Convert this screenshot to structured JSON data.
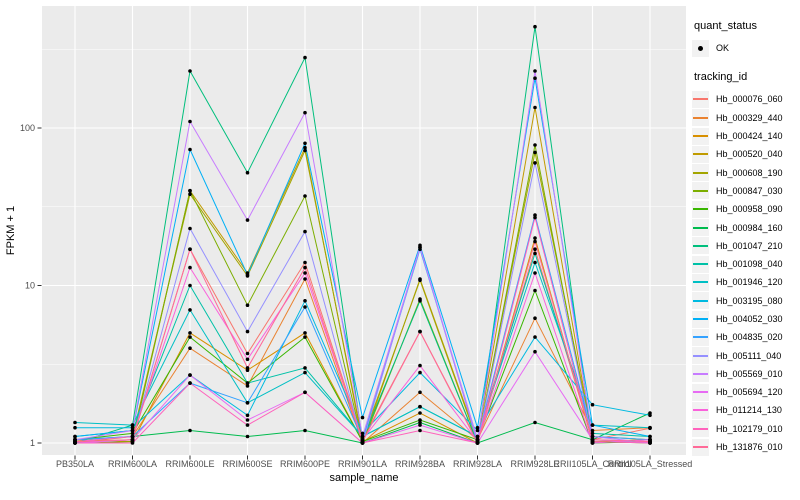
{
  "chart_data": {
    "type": "line",
    "title": "",
    "xlabel": "sample_name",
    "ylabel": "FPKM + 1",
    "y_scale": "log10",
    "y_ticks": [
      1,
      10,
      100
    ],
    "ylim": [
      1,
      560
    ],
    "grid": true,
    "legend_position": "right",
    "point_color": "#000000",
    "categories": [
      "PB350LA",
      "RRIM600LA",
      "RRIM600LE",
      "RRIM600SE",
      "RRIM600PE",
      "RRIM901LA",
      "RRIM928BA",
      "RRIM928LA",
      "RRIM928LE",
      "RRII105LA_Control",
      "RRII105LA_Stressed"
    ],
    "series": [
      {
        "name": "Hb_000076_060",
        "color": "#F8766D",
        "values": [
          1.02,
          1.05,
          17,
          3.7,
          14,
          1.05,
          5.1,
          1.02,
          17,
          1.05,
          1.24
        ]
      },
      {
        "name": "Hb_000329_440",
        "color": "#EA8331",
        "values": [
          1.0,
          1.1,
          4.0,
          2.3,
          11,
          1.0,
          2.1,
          1.05,
          6.2,
          1.2,
          1.25
        ]
      },
      {
        "name": "Hb_000424_140",
        "color": "#D89000",
        "values": [
          1.05,
          1.02,
          5.0,
          2.9,
          5.0,
          1.02,
          1.55,
          1.0,
          20,
          1.02,
          1.05
        ]
      },
      {
        "name": "Hb_000520_040",
        "color": "#C09B00",
        "values": [
          1.0,
          1.05,
          40,
          12,
          75,
          1.0,
          11,
          1.05,
          135,
          1.05,
          1.02
        ]
      },
      {
        "name": "Hb_000608_190",
        "color": "#A3A500",
        "values": [
          1.02,
          1.1,
          38,
          11.5,
          72,
          1.05,
          10.8,
          1.02,
          70,
          1.1,
          1.05
        ]
      },
      {
        "name": "Hb_000847_030",
        "color": "#7CAE00",
        "values": [
          1.0,
          1.02,
          40,
          7.5,
          37,
          1.0,
          8.2,
          1.0,
          78,
          1.02,
          1.0
        ]
      },
      {
        "name": "Hb_000958_090",
        "color": "#39B600",
        "values": [
          1.05,
          1.15,
          4.7,
          2.4,
          4.7,
          1.02,
          1.4,
          1.05,
          9.3,
          1.0,
          1.02
        ]
      },
      {
        "name": "Hb_000984_160",
        "color": "#00BB4E",
        "values": [
          1.05,
          1.1,
          1.2,
          1.1,
          1.2,
          1.0,
          1.35,
          1.0,
          1.35,
          1.05,
          1.55
        ]
      },
      {
        "name": "Hb_001047_210",
        "color": "#00BF7D",
        "values": [
          1.0,
          1.3,
          230,
          52,
          280,
          1.05,
          8.0,
          1.0,
          440,
          1.0,
          1.05
        ]
      },
      {
        "name": "Hb_001098_040",
        "color": "#00C1A7",
        "values": [
          1.1,
          1.2,
          10,
          2.4,
          3.0,
          1.1,
          1.7,
          1.1,
          16,
          1.15,
          1.1
        ]
      },
      {
        "name": "Hb_001946_120",
        "color": "#00BFC4",
        "values": [
          1.35,
          1.3,
          7.0,
          1.8,
          2.8,
          1.1,
          1.7,
          1.1,
          14,
          1.3,
          1.25
        ]
      },
      {
        "name": "Hb_003195_080",
        "color": "#00BAE0",
        "values": [
          1.25,
          1.25,
          2.7,
          1.5,
          8.0,
          1.15,
          2.8,
          1.2,
          4.7,
          1.75,
          1.5
        ]
      },
      {
        "name": "Hb_004052_030",
        "color": "#00B0F6",
        "values": [
          1.1,
          1.2,
          73,
          11.7,
          80,
          1.45,
          18,
          1.25,
          207,
          1.3,
          1.1
        ]
      },
      {
        "name": "Hb_004835_020",
        "color": "#35A2FF",
        "values": [
          1.05,
          1.1,
          2.4,
          1.8,
          7.3,
          1.05,
          17,
          1.05,
          28,
          1.1,
          1.05
        ]
      },
      {
        "name": "Hb_005111_040",
        "color": "#9590FF",
        "values": [
          1.0,
          1.05,
          23,
          5.1,
          22,
          1.0,
          17.5,
          1.0,
          60,
          1.05,
          1.0
        ]
      },
      {
        "name": "Hb_005569_010",
        "color": "#C77CFF",
        "values": [
          1.05,
          1.2,
          110,
          26,
          125,
          1.1,
          17.5,
          1.05,
          230,
          1.1,
          1.0
        ]
      },
      {
        "name": "Hb_005694_120",
        "color": "#E76BF3",
        "values": [
          1.0,
          1.05,
          2.7,
          1.4,
          2.1,
          1.0,
          1.3,
          1.0,
          3.8,
          1.05,
          1.02
        ]
      },
      {
        "name": "Hb_011214_130",
        "color": "#FA62DB",
        "values": [
          1.02,
          1.1,
          13,
          3.4,
          12,
          1.05,
          3.1,
          1.02,
          12,
          1.0,
          1.05
        ]
      },
      {
        "name": "Hb_102179_010",
        "color": "#FF62BC",
        "values": [
          1.0,
          1.0,
          2.4,
          1.3,
          2.1,
          1.0,
          1.2,
          1.0,
          27,
          1.02,
          1.0
        ]
      },
      {
        "name": "Hb_131876_010",
        "color": "#FF6A98",
        "values": [
          1.02,
          1.05,
          17,
          3.0,
          13,
          1.02,
          5.1,
          1.0,
          19,
          1.05,
          1.02
        ]
      }
    ]
  },
  "legend": {
    "quant_status_title": "quant_status",
    "quant_status_items": [
      {
        "label": "OK"
      }
    ],
    "tracking_id_title": "tracking_id"
  },
  "colors": {
    "panel_bg": "#EBEBEB",
    "grid": "#FFFFFF",
    "legend_key_bg": "#F2F2F2",
    "tick_text": "#4D4D4D",
    "tick_mark": "#333333",
    "axis_title": "#000000"
  }
}
